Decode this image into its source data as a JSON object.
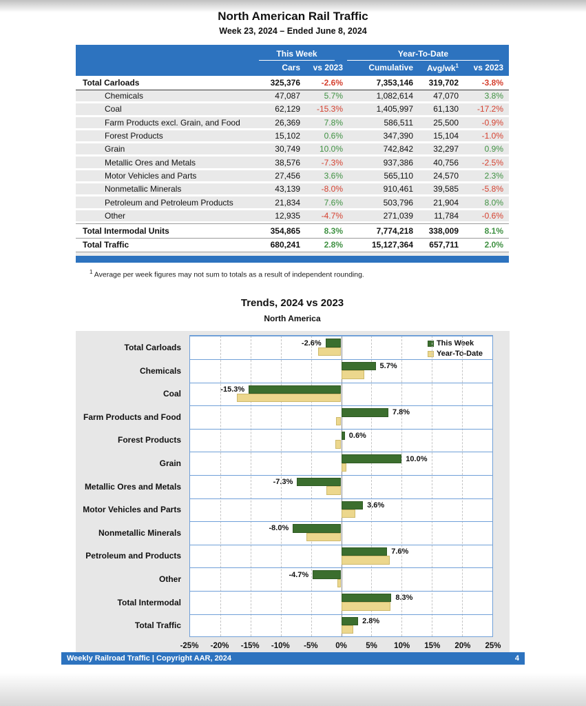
{
  "header": {
    "title": "North American Rail Traffic",
    "subtitle": "Week 23, 2024 – Ended June 8, 2024"
  },
  "table": {
    "group_headers": {
      "this_week": "This Week",
      "ytd": "Year-To-Date"
    },
    "col_headers": {
      "cars": "Cars",
      "tw_vs": "vs 2023",
      "cumulative": "Cumulative",
      "avg_wk": "Avg/wk",
      "avg_wk_sup": "1",
      "ytd_vs": "vs 2023"
    },
    "rows": [
      {
        "type": "total",
        "label": "Total Carloads",
        "cars": "325,376",
        "tw_vs": "-2.6%",
        "cumulative": "7,353,146",
        "avg_wk": "319,702",
        "ytd_vs": "-3.8%"
      },
      {
        "type": "item",
        "label": "Chemicals",
        "cars": "47,087",
        "tw_vs": "5.7%",
        "cumulative": "1,082,614",
        "avg_wk": "47,070",
        "ytd_vs": "3.8%"
      },
      {
        "type": "item",
        "label": "Coal",
        "cars": "62,129",
        "tw_vs": "-15.3%",
        "cumulative": "1,405,997",
        "avg_wk": "61,130",
        "ytd_vs": "-17.2%"
      },
      {
        "type": "item",
        "label": "Farm Products excl. Grain, and Food",
        "cars": "26,369",
        "tw_vs": "7.8%",
        "cumulative": "586,511",
        "avg_wk": "25,500",
        "ytd_vs": "-0.9%"
      },
      {
        "type": "item",
        "label": "Forest Products",
        "cars": "15,102",
        "tw_vs": "0.6%",
        "cumulative": "347,390",
        "avg_wk": "15,104",
        "ytd_vs": "-1.0%"
      },
      {
        "type": "item",
        "label": "Grain",
        "cars": "30,749",
        "tw_vs": "10.0%",
        "cumulative": "742,842",
        "avg_wk": "32,297",
        "ytd_vs": "0.9%"
      },
      {
        "type": "item",
        "label": "Metallic Ores and Metals",
        "cars": "38,576",
        "tw_vs": "-7.3%",
        "cumulative": "937,386",
        "avg_wk": "40,756",
        "ytd_vs": "-2.5%"
      },
      {
        "type": "item",
        "label": "Motor Vehicles and Parts",
        "cars": "27,456",
        "tw_vs": "3.6%",
        "cumulative": "565,110",
        "avg_wk": "24,570",
        "ytd_vs": "2.3%"
      },
      {
        "type": "item",
        "label": "Nonmetallic Minerals",
        "cars": "43,139",
        "tw_vs": "-8.0%",
        "cumulative": "910,461",
        "avg_wk": "39,585",
        "ytd_vs": "-5.8%"
      },
      {
        "type": "item",
        "label": "Petroleum and Petroleum Products",
        "cars": "21,834",
        "tw_vs": "7.6%",
        "cumulative": "503,796",
        "avg_wk": "21,904",
        "ytd_vs": "8.0%"
      },
      {
        "type": "item",
        "label": "Other",
        "cars": "12,935",
        "tw_vs": "-4.7%",
        "cumulative": "271,039",
        "avg_wk": "11,784",
        "ytd_vs": "-0.6%"
      },
      {
        "type": "total",
        "label": "Total Intermodal Units",
        "cars": "354,865",
        "tw_vs": "8.3%",
        "cumulative": "7,774,218",
        "avg_wk": "338,009",
        "ytd_vs": "8.1%"
      },
      {
        "type": "total",
        "label": "Total Traffic",
        "cars": "680,241",
        "tw_vs": "2.8%",
        "cumulative": "15,127,364",
        "avg_wk": "657,711",
        "ytd_vs": "2.0%"
      }
    ],
    "footnote_sup": "1",
    "footnote": "Average per week figures may not sum to totals as a result of independent rounding."
  },
  "chart_data": {
    "type": "bar",
    "orientation": "horizontal",
    "title": "Trends, 2024 vs 2023",
    "subtitle": "North America",
    "categories": [
      "Total Carloads",
      "Chemicals",
      "Coal",
      "Farm Products and Food",
      "Forest Products",
      "Grain",
      "Metallic Ores and Metals",
      "Motor Vehicles and Parts",
      "Nonmetallic Minerals",
      "Petroleum and Products",
      "Other",
      "Total Intermodal",
      "Total Traffic"
    ],
    "series": [
      {
        "name": "This Week",
        "color": "#3b6e2e",
        "border": "#2f5a24",
        "values": [
          -2.6,
          5.7,
          -15.3,
          7.8,
          0.6,
          10.0,
          -7.3,
          3.6,
          -8.0,
          7.6,
          -4.7,
          8.3,
          2.8
        ],
        "labels": [
          "-2.6%",
          "5.7%",
          "-15.3%",
          "7.8%",
          "0.6%",
          "10.0%",
          "-7.3%",
          "3.6%",
          "-8.0%",
          "7.6%",
          "-4.7%",
          "8.3%",
          "2.8%"
        ]
      },
      {
        "name": "Year-To-Date",
        "color": "#ecd78d",
        "border": "#cdb96b",
        "values": [
          -3.8,
          3.8,
          -17.2,
          -0.9,
          -1.0,
          0.9,
          -2.5,
          2.3,
          -5.8,
          8.0,
          -0.6,
          8.1,
          2.0
        ]
      }
    ],
    "xlim": [
      -25,
      25
    ],
    "x_tick_values": [
      -25,
      -20,
      -15,
      -10,
      -5,
      0,
      5,
      10,
      15,
      20,
      25
    ],
    "x_ticks": [
      "-25%",
      "-20%",
      "-15%",
      "-10%",
      "-5%",
      "0%",
      "5%",
      "10%",
      "15%",
      "20%",
      "25%"
    ],
    "legend_position": "top-right",
    "grid": "dashed-vertical-5pct"
  },
  "footer": {
    "left": "Weekly Railroad Traffic | Copyright AAR, 2024",
    "page": "4"
  }
}
